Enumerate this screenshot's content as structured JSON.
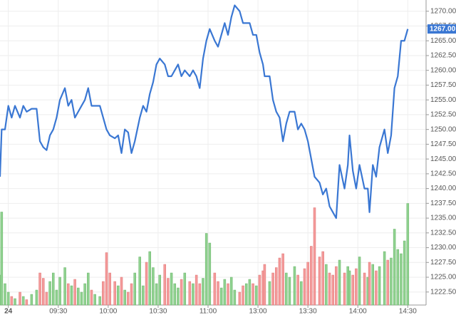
{
  "chart_data": {
    "type": "line",
    "x": [
      -5,
      -4,
      -2,
      0,
      2,
      4,
      7,
      9,
      11,
      14,
      17,
      19,
      21,
      23,
      25,
      27,
      29,
      31,
      34,
      36,
      38,
      40,
      42,
      44,
      46,
      48,
      50,
      52,
      55,
      57,
      59,
      61,
      64,
      66,
      68,
      70,
      72,
      74,
      76,
      79,
      81,
      83,
      85,
      87,
      89,
      91,
      94,
      96,
      98,
      100,
      102,
      104,
      106,
      109,
      111,
      113,
      115,
      117,
      119,
      121,
      124,
      126,
      128,
      130,
      132,
      134,
      136,
      139,
      141,
      143,
      145,
      147,
      149,
      151,
      153,
      154,
      157,
      159,
      161,
      163,
      165,
      167,
      169,
      172,
      174,
      176,
      178,
      180,
      182,
      184,
      187,
      189,
      191,
      193,
      195,
      197,
      199,
      202,
      204,
      205,
      207,
      209,
      211,
      214,
      216,
      217,
      219,
      221,
      223,
      226,
      228,
      230,
      232,
      234,
      236,
      238,
      240
    ],
    "series": [
      {
        "color": "#3a77d3",
        "values": [
          1242,
          1250,
          1250,
          1254,
          1252,
          1254,
          1252,
          1254,
          1253,
          1253.5,
          1253.5,
          1248,
          1247,
          1246.5,
          1249,
          1250,
          1252,
          1255,
          1257,
          1254,
          1255,
          1252,
          1253,
          1254,
          1255,
          1257,
          1254,
          1254,
          1254,
          1252,
          1250,
          1249,
          1248.5,
          1249,
          1246,
          1250,
          1249.5,
          1246,
          1248,
          1252,
          1254,
          1253,
          1256,
          1258,
          1261,
          1262,
          1261,
          1259,
          1259,
          1260,
          1261,
          1259,
          1260,
          1259,
          1260,
          1259,
          1257,
          1262,
          1265,
          1267,
          1265,
          1264,
          1266,
          1268,
          1266,
          1269,
          1271,
          1270,
          1268,
          1268,
          1268,
          1266,
          1266,
          1263,
          1261,
          1259,
          1259,
          1255,
          1253,
          1252,
          1248,
          1251,
          1253,
          1253,
          1250,
          1251,
          1250,
          1248,
          1245,
          1242,
          1241,
          1239,
          1240,
          1237,
          1236,
          1235,
          1244,
          1240,
          1244,
          1249,
          1243,
          1240,
          1244,
          1240,
          1240,
          1236,
          1244,
          1242,
          1247,
          1250,
          1246,
          1249,
          1257,
          1259,
          1265,
          1265,
          1267
        ]
      }
    ],
    "volume": {
      "type": "bar",
      "ylim": [
        0,
        100
      ],
      "up_color": "#8fd18f",
      "down_color": "#f49a9a",
      "values": [
        28,
        87,
        20,
        12,
        8,
        6,
        12,
        8,
        5,
        10,
        14,
        30,
        25,
        12,
        22,
        30,
        14,
        26,
        35,
        20,
        18,
        24,
        16,
        12,
        20,
        30,
        14,
        10,
        8,
        22,
        49,
        30,
        22,
        18,
        26,
        14,
        12,
        20,
        30,
        45,
        18,
        40,
        50,
        35,
        20,
        28,
        38,
        25,
        30,
        20,
        16,
        24,
        30,
        22,
        20,
        28,
        20,
        25,
        67,
        58,
        30,
        22,
        16,
        24,
        20,
        26,
        14,
        12,
        18,
        20,
        24,
        20,
        18,
        28,
        32,
        38,
        22,
        30,
        35,
        44,
        48,
        30,
        26,
        36,
        28,
        22,
        34,
        40,
        55,
        91,
        45,
        50,
        38,
        30,
        28,
        36,
        42,
        30,
        36,
        32,
        28,
        34,
        45,
        30,
        26,
        40,
        38,
        32,
        36,
        50,
        42,
        44,
        71,
        52,
        48,
        60,
        95
      ]
    },
    "xlim": [
      -5,
      251
    ],
    "ylim": [
      1220.3,
      1271.9
    ],
    "xticks": [
      {
        "value": 0,
        "label": "24"
      },
      {
        "value": 30,
        "label": "09:30"
      },
      {
        "value": 60,
        "label": "10:00"
      },
      {
        "value": 90,
        "label": "10:30"
      },
      {
        "value": 120,
        "label": "11:00"
      },
      {
        "value": 150,
        "label": "13:00"
      },
      {
        "value": 180,
        "label": "13:30"
      },
      {
        "value": 210,
        "label": "14:00"
      },
      {
        "value": 240,
        "label": "14:30"
      }
    ],
    "yticks": [
      {
        "value": 1222.5,
        "label": "1222.50"
      },
      {
        "value": 1225,
        "label": "1225.00"
      },
      {
        "value": 1227.5,
        "label": "1227.50"
      },
      {
        "value": 1230,
        "label": "1230.00"
      },
      {
        "value": 1232.5,
        "label": "1232.50"
      },
      {
        "value": 1235,
        "label": "1235.00"
      },
      {
        "value": 1237.5,
        "label": "1237.50"
      },
      {
        "value": 1240,
        "label": "1240.00"
      },
      {
        "value": 1242.5,
        "label": "1242.50"
      },
      {
        "value": 1245,
        "label": "1245.00"
      },
      {
        "value": 1247.5,
        "label": "1247.50"
      },
      {
        "value": 1250,
        "label": "1250.00"
      },
      {
        "value": 1252.5,
        "label": "1252.50"
      },
      {
        "value": 1255,
        "label": "1255.00"
      },
      {
        "value": 1257.5,
        "label": "1257.50"
      },
      {
        "value": 1260,
        "label": "1260.00"
      },
      {
        "value": 1262.5,
        "label": "1262.50"
      },
      {
        "value": 1265,
        "label": "1265.00"
      },
      {
        "value": 1267.5,
        "label": "1267.50"
      },
      {
        "value": 1270,
        "label": "1270.00"
      }
    ],
    "grid": true,
    "last_price": {
      "value": 1267,
      "label": "1267.00",
      "color": "#3a77d3"
    }
  }
}
